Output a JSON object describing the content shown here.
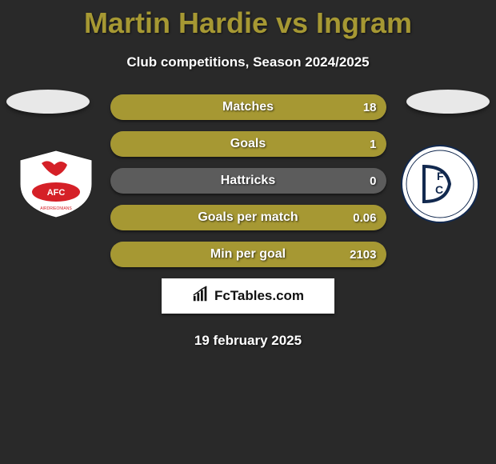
{
  "title": "Martin Hardie vs Ingram",
  "subtitle": "Club competitions, Season 2024/2025",
  "date": "19 february 2025",
  "brand": "FcTables.com",
  "colors": {
    "title_color": "#a69833",
    "text_color": "#ffffff",
    "background": "#292929",
    "row_empty": "#5c5c5c",
    "fill_olive": "#a69833",
    "brand_box_bg": "#ffffff"
  },
  "left_club": {
    "name": "Airdrieonians",
    "badge_bg": "#ffffff",
    "badge_accent": "#d52027",
    "badge_text": "AFC"
  },
  "right_club": {
    "name": "Dundee",
    "badge_bg": "#ffffff",
    "badge_accent": "#12294f",
    "badge_text": "DFC"
  },
  "stats": [
    {
      "label": "Matches",
      "left_value": "",
      "right_value": "18",
      "left_fill_pct": 0,
      "right_fill_pct": 100,
      "left_fill_color": "#a69833",
      "right_fill_color": "#a69833"
    },
    {
      "label": "Goals",
      "left_value": "",
      "right_value": "1",
      "left_fill_pct": 0,
      "right_fill_pct": 100,
      "left_fill_color": "#a69833",
      "right_fill_color": "#a69833"
    },
    {
      "label": "Hattricks",
      "left_value": "",
      "right_value": "0",
      "left_fill_pct": 0,
      "right_fill_pct": 0,
      "left_fill_color": "#a69833",
      "right_fill_color": "#a69833"
    },
    {
      "label": "Goals per match",
      "left_value": "",
      "right_value": "0.06",
      "left_fill_pct": 0,
      "right_fill_pct": 100,
      "left_fill_color": "#a69833",
      "right_fill_color": "#a69833"
    },
    {
      "label": "Min per goal",
      "left_value": "",
      "right_value": "2103",
      "left_fill_pct": 0,
      "right_fill_pct": 100,
      "left_fill_color": "#a69833",
      "right_fill_color": "#a69833"
    }
  ]
}
